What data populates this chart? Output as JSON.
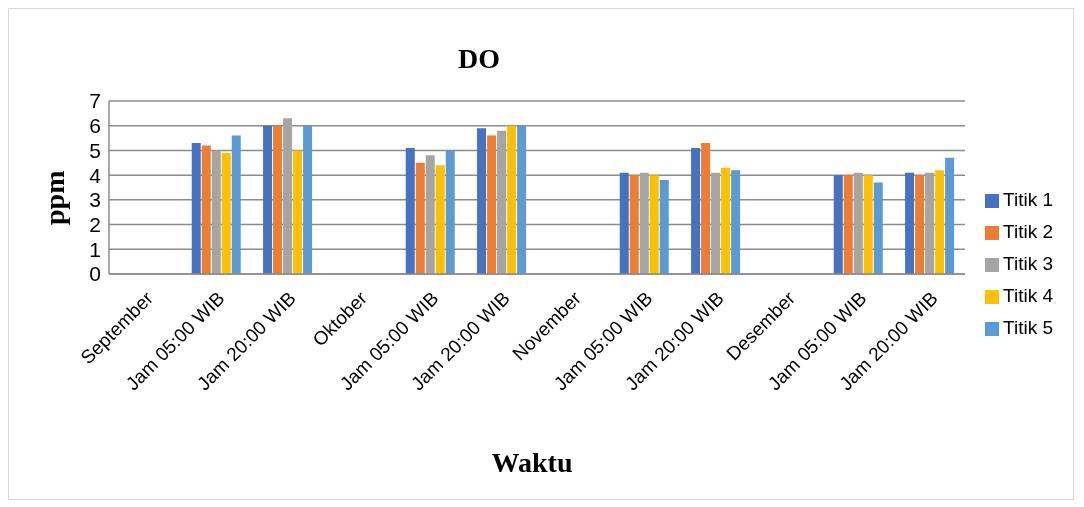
{
  "chart_data": {
    "type": "bar",
    "title": "DO",
    "xlabel": "Waktu",
    "ylabel": "ppm",
    "categories": [
      "September",
      "Jam 05:00 WIB",
      "Jam 20:00 WIB",
      "Oktober",
      "Jam 05:00 WIB",
      "Jam 20:00 WIB",
      "November",
      "Jam 05:00 WIB",
      "Jam 20:00 WIB",
      "Desember",
      "Jam 05:00 WIB",
      "Jam 20:00 WIB"
    ],
    "series": [
      {
        "name": "Titik 1",
        "color": "#4472c4",
        "values": [
          null,
          5.3,
          6.0,
          null,
          5.1,
          5.9,
          null,
          4.1,
          5.1,
          null,
          4.0,
          4.1
        ]
      },
      {
        "name": "Titik 2",
        "color": "#ed7d31",
        "values": [
          null,
          5.2,
          6.0,
          null,
          4.5,
          5.6,
          null,
          4.0,
          5.3,
          null,
          4.0,
          4.0
        ]
      },
      {
        "name": "Titik 3",
        "color": "#a5a5a5",
        "values": [
          null,
          5.0,
          6.3,
          null,
          4.8,
          5.8,
          null,
          4.1,
          4.1,
          null,
          4.1,
          4.1
        ]
      },
      {
        "name": "Titik 4",
        "color": "#ffc000",
        "values": [
          null,
          4.9,
          5.0,
          null,
          4.4,
          6.0,
          null,
          4.0,
          4.3,
          null,
          4.0,
          4.2
        ]
      },
      {
        "name": "Titik 5",
        "color": "#5b9bd5",
        "values": [
          null,
          5.6,
          6.0,
          null,
          5.0,
          6.0,
          null,
          3.8,
          4.2,
          null,
          3.7,
          4.7
        ]
      }
    ],
    "ylim": [
      0,
      7
    ],
    "yticks": [
      0,
      1,
      2,
      3,
      4,
      5,
      6,
      7
    ],
    "grid": "y",
    "legend": "right"
  }
}
